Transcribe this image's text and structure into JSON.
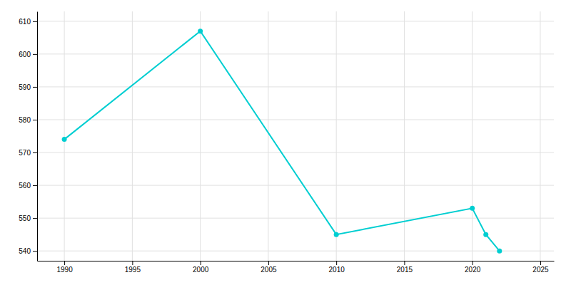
{
  "chart_data": {
    "type": "line",
    "x": [
      1990,
      2000,
      2010,
      2020,
      2021,
      2022
    ],
    "values": [
      574,
      607,
      545,
      553,
      545,
      540
    ],
    "color": "#00CED1",
    "marker": "circle",
    "xlim": [
      1988,
      2026
    ],
    "ylim": [
      537,
      613
    ],
    "xticks": [
      1990,
      1995,
      2000,
      2005,
      2010,
      2015,
      2020,
      2025
    ],
    "yticks": [
      540,
      550,
      560,
      570,
      580,
      590,
      600,
      610
    ],
    "grid": true
  }
}
